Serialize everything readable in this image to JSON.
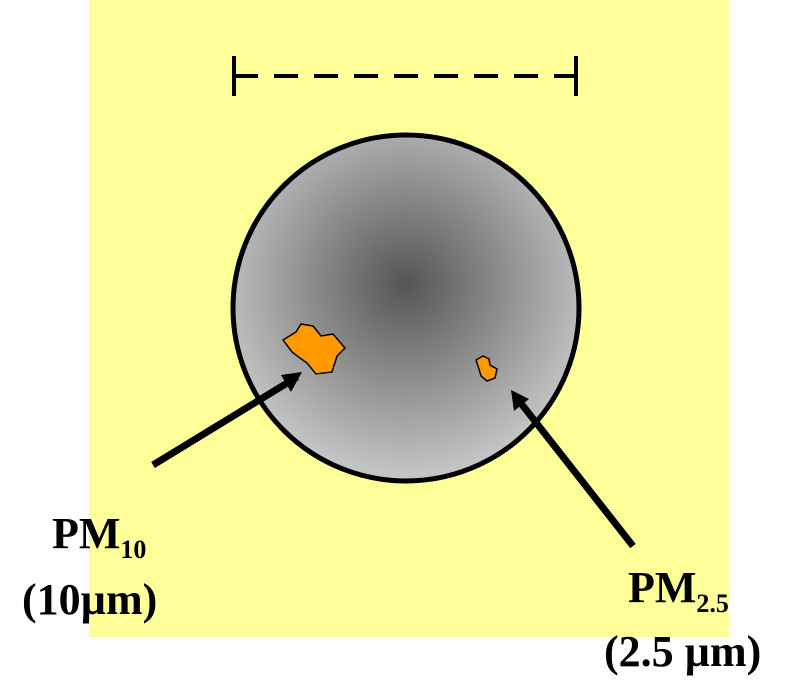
{
  "labels": {
    "pm10": {
      "name": "PM",
      "subscript": "10",
      "size": "(10µm)"
    },
    "pm25": {
      "name": "PM",
      "subscript": "2.5",
      "size": "(2.5 µm)"
    }
  },
  "colors": {
    "background": "#ffff99",
    "particle": "#ff9900",
    "outline": "#000000",
    "sphere_center": "#555555",
    "sphere_edge": "#c4c4c4"
  }
}
